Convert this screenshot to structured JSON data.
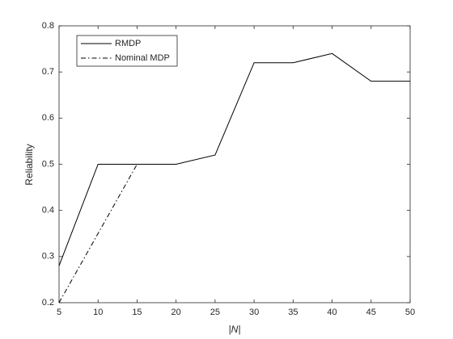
{
  "chart_data": {
    "type": "line",
    "x_label": "|N|",
    "y_label": "Reliability",
    "x": [
      5,
      10,
      15,
      20,
      25,
      30,
      35,
      40,
      45,
      50
    ],
    "series": [
      {
        "name": "RMDP",
        "color": "#000000",
        "dash": "solid",
        "values": [
          0.28,
          0.5,
          0.5,
          0.5,
          0.52,
          0.72,
          0.72,
          0.74,
          0.68,
          0.68
        ]
      },
      {
        "name": "Nominal MDP",
        "color": "#000000",
        "dash": "dashdot",
        "values": [
          0.2,
          0.35,
          0.5,
          null,
          null,
          null,
          null,
          null,
          null,
          null
        ]
      }
    ],
    "xlim": [
      5,
      50
    ],
    "xticks": [
      5,
      10,
      15,
      20,
      25,
      30,
      35,
      40,
      45,
      50
    ],
    "ylim": [
      0.2,
      0.8
    ],
    "yticks": [
      0.2,
      0.3,
      0.4,
      0.5,
      0.6,
      0.7,
      0.8
    ],
    "grid": false,
    "legend": "upper left"
  }
}
